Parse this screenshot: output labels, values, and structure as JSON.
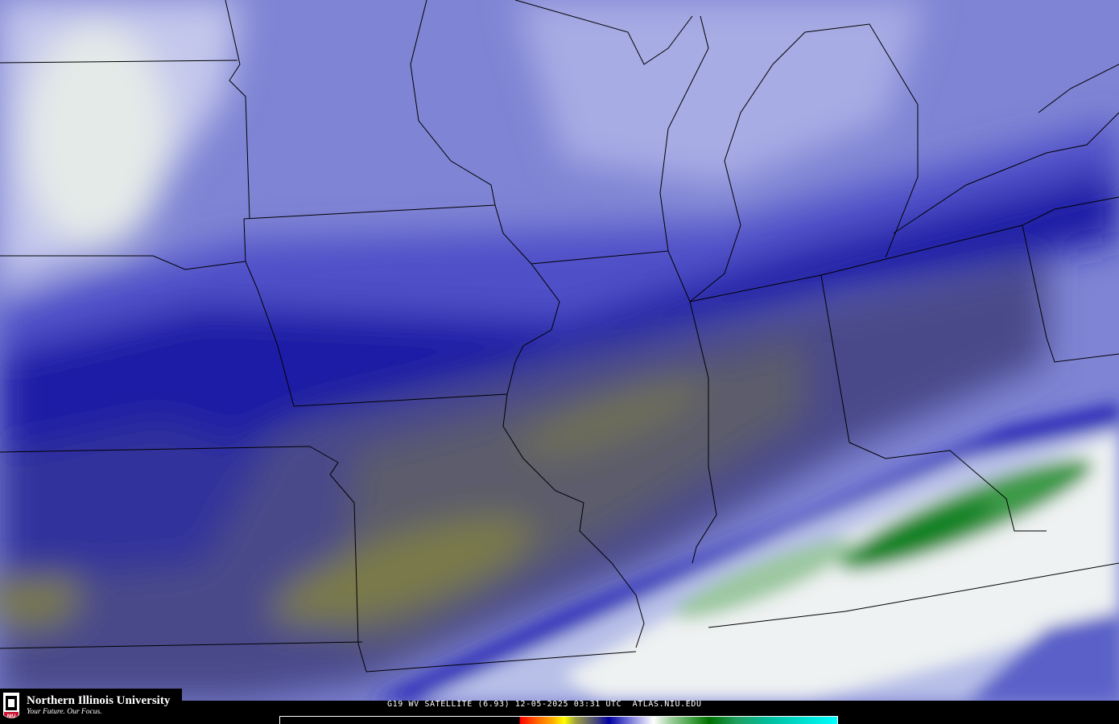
{
  "map": {
    "product": "G19 WV SATELLITE (6.93) 12-05-2025 03:31 UTC",
    "site": "ATLAS.NIU.EDU",
    "colors": {
      "dry_upper": "#8c90d8",
      "moist_band": "#1a1aa0",
      "very_dry": "#5a5a70",
      "driest": "#7a7a50",
      "cloud_white": "#e8ecf0",
      "cloud_green": "#208030"
    }
  },
  "logo": {
    "name": "Northern Illinois University",
    "tagline": "Your Future. Our Focus.",
    "mark": "NIU"
  },
  "colorbar": {
    "type": "water-vapor-brightness-temperature"
  }
}
